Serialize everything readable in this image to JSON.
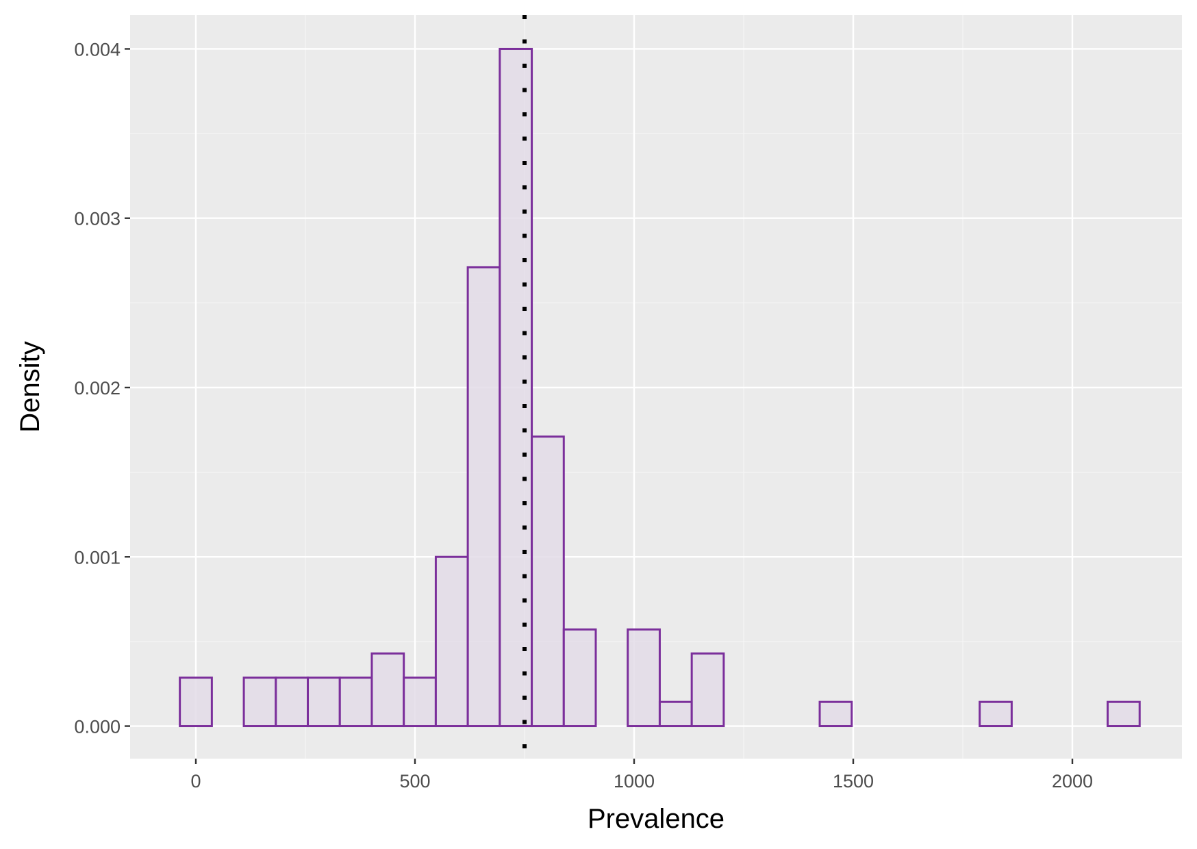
{
  "chart_data": {
    "type": "histogram",
    "title": "",
    "xlabel": "Prevalence",
    "ylabel": "Density",
    "xlim": [
      -150,
      2250
    ],
    "ylim": [
      -0.000192,
      0.0042
    ],
    "x_ticks": [
      0,
      500,
      1000,
      1500,
      2000
    ],
    "x_tick_labels": [
      "0",
      "500",
      "1000",
      "1500",
      "2000"
    ],
    "y_ticks": [
      0,
      0.001,
      0.002,
      0.003,
      0.004
    ],
    "y_tick_labels": [
      "0.000",
      "0.001",
      "0.002",
      "0.003",
      "0.004"
    ],
    "bin_width": 73,
    "bins": [
      {
        "x": 0,
        "density": 0.000286
      },
      {
        "x": 73,
        "density": 0
      },
      {
        "x": 146,
        "density": 0.000286
      },
      {
        "x": 219,
        "density": 0.000286
      },
      {
        "x": 292,
        "density": 0.000286
      },
      {
        "x": 365,
        "density": 0.000286
      },
      {
        "x": 438,
        "density": 0.000429
      },
      {
        "x": 511,
        "density": 0.000286
      },
      {
        "x": 584,
        "density": 0.001
      },
      {
        "x": 657,
        "density": 0.00271
      },
      {
        "x": 730,
        "density": 0.004
      },
      {
        "x": 803,
        "density": 0.00171
      },
      {
        "x": 876,
        "density": 0.000571
      },
      {
        "x": 949,
        "density": 0
      },
      {
        "x": 1022,
        "density": 0.000571
      },
      {
        "x": 1095,
        "density": 0.000143
      },
      {
        "x": 1168,
        "density": 0.000429
      },
      {
        "x": 1241,
        "density": 0
      },
      {
        "x": 1314,
        "density": 0
      },
      {
        "x": 1387,
        "density": 0
      },
      {
        "x": 1460,
        "density": 0.000143
      },
      {
        "x": 1533,
        "density": 0
      },
      {
        "x": 1606,
        "density": 0
      },
      {
        "x": 1679,
        "density": 0
      },
      {
        "x": 1752,
        "density": 0
      },
      {
        "x": 1825,
        "density": 0.000143
      },
      {
        "x": 1898,
        "density": 0
      },
      {
        "x": 1971,
        "density": 0
      },
      {
        "x": 2044,
        "density": 0
      },
      {
        "x": 2117,
        "density": 0.000143
      }
    ],
    "reference_line": {
      "x": 750,
      "style": "dotted",
      "color": "#000000"
    },
    "grid": true,
    "colors": {
      "panel_background": "#ebebeb",
      "grid_major": "#ffffff",
      "grid_minor": "#f5f5f5",
      "bar_outline": "#7b2f9b",
      "bar_fill": "#e3dce8",
      "tick_label": "#4d4d4d",
      "axis_title": "#000000"
    }
  }
}
